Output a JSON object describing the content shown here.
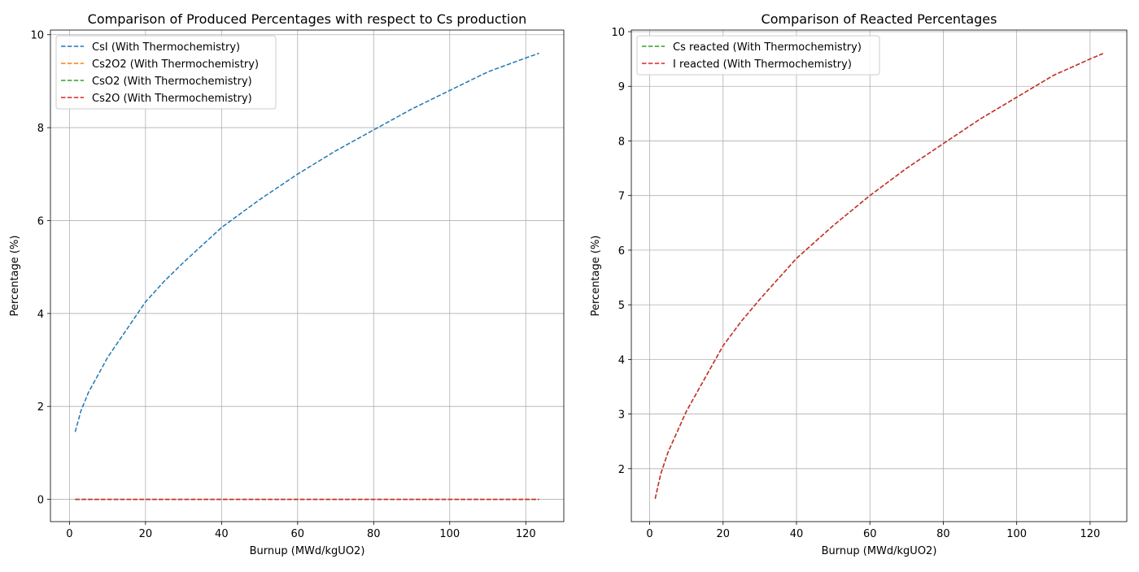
{
  "chart_data": [
    {
      "type": "line",
      "title": "Comparison of Produced Percentages with respect to Cs production",
      "xlabel": "Burnup (MWd/kgUO2)",
      "ylabel": "Percentage (%)",
      "xlim": [
        -5,
        130
      ],
      "ylim": [
        -0.48,
        10.1
      ],
      "xticks": [
        0,
        20,
        40,
        60,
        80,
        100,
        120
      ],
      "yticks": [
        0,
        2,
        4,
        6,
        8,
        10
      ],
      "grid": true,
      "legend_position": "upper-left",
      "series": [
        {
          "name": "CsI (With Thermochemistry)",
          "color": "#1f77b4",
          "style": "dashed",
          "x": [
            1.5,
            3,
            5,
            8,
            10,
            15,
            20,
            25,
            30,
            40,
            50,
            60,
            70,
            80,
            90,
            100,
            110,
            120,
            123.5
          ],
          "y": [
            1.45,
            1.9,
            2.3,
            2.75,
            3.05,
            3.65,
            4.25,
            4.7,
            5.1,
            5.85,
            6.45,
            7.0,
            7.5,
            7.95,
            8.4,
            8.8,
            9.2,
            9.5,
            9.6
          ]
        },
        {
          "name": "Cs2O2 (With Thermochemistry)",
          "color": "#ff7f0e",
          "style": "dashed",
          "x": [
            1.5,
            123.5
          ],
          "y": [
            0,
            0
          ]
        },
        {
          "name": "CsO2 (With Thermochemistry)",
          "color": "#2ca02c",
          "style": "dashed",
          "x": [
            1.5,
            123.5
          ],
          "y": [
            0,
            0
          ]
        },
        {
          "name": "Cs2O (With Thermochemistry)",
          "color": "#d62728",
          "style": "dashed",
          "x": [
            1.5,
            123.5
          ],
          "y": [
            0,
            0
          ]
        }
      ]
    },
    {
      "type": "line",
      "title": "Comparison of Reacted Percentages",
      "xlabel": "Burnup (MWd/kgUO2)",
      "ylabel": "Percentage (%)",
      "xlim": [
        -5,
        130
      ],
      "ylim": [
        1.03,
        10.03
      ],
      "xticks": [
        0,
        20,
        40,
        60,
        80,
        100,
        120
      ],
      "yticks": [
        2,
        3,
        4,
        5,
        6,
        7,
        8,
        9,
        10
      ],
      "grid": true,
      "legend_position": "upper-left",
      "series": [
        {
          "name": "Cs reacted (With Thermochemistry)",
          "color": "#2ca02c",
          "style": "dashed",
          "x": [
            1.5,
            3,
            5,
            8,
            10,
            15,
            20,
            25,
            30,
            40,
            50,
            60,
            70,
            80,
            90,
            100,
            110,
            120,
            123.5
          ],
          "y": [
            1.45,
            1.9,
            2.3,
            2.75,
            3.05,
            3.65,
            4.25,
            4.7,
            5.1,
            5.85,
            6.45,
            7.0,
            7.5,
            7.95,
            8.4,
            8.8,
            9.2,
            9.5,
            9.6
          ]
        },
        {
          "name": "I reacted (With Thermochemistry)",
          "color": "#d62728",
          "style": "dashed",
          "x": [
            1.5,
            3,
            5,
            8,
            10,
            15,
            20,
            25,
            30,
            40,
            50,
            60,
            70,
            80,
            90,
            100,
            110,
            120,
            123.5
          ],
          "y": [
            1.45,
            1.9,
            2.3,
            2.75,
            3.05,
            3.65,
            4.25,
            4.7,
            5.1,
            5.85,
            6.45,
            7.0,
            7.5,
            7.95,
            8.4,
            8.8,
            9.2,
            9.5,
            9.6
          ]
        }
      ]
    }
  ]
}
